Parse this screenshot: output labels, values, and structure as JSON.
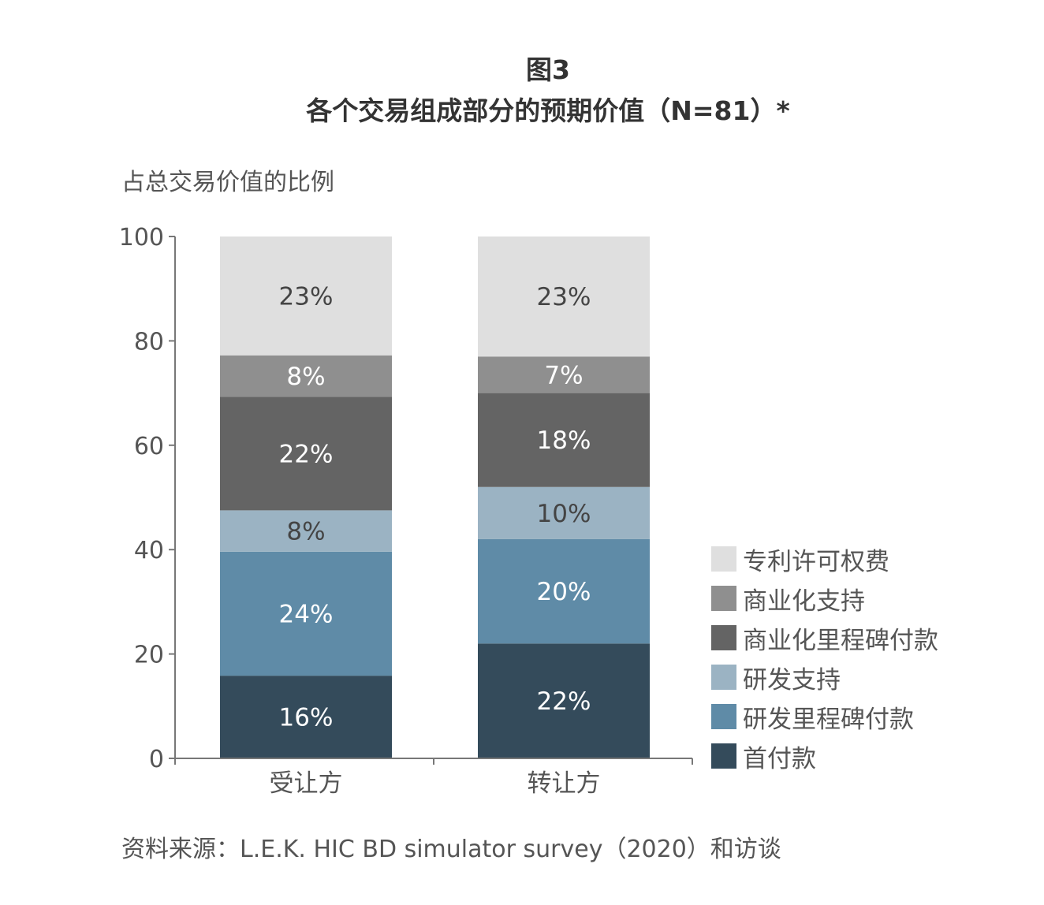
{
  "figure": {
    "label": "图3",
    "title": "各个交易组成部分的预期价值（N=81）*",
    "source": "资料来源：L.E.K. HIC BD simulator survey（2020）和访谈"
  },
  "chart_data": {
    "type": "bar",
    "stacked": true,
    "ylabel": "占总交易价值的比例",
    "xlabel": "",
    "ylim": [
      0,
      100
    ],
    "yticks": [
      "0",
      "20",
      "40",
      "60",
      "80",
      "100"
    ],
    "categories": [
      "受让方",
      "转让方"
    ],
    "series": [
      {
        "name": "首付款",
        "color": "#344b5b",
        "values": [
          16,
          22
        ],
        "labels": [
          "16%",
          "22%"
        ]
      },
      {
        "name": "研发里程碑付款",
        "color": "#5f8ba7",
        "values": [
          24,
          20
        ],
        "labels": [
          "24%",
          "20%"
        ]
      },
      {
        "name": "研发支持",
        "color": "#9bb3c3",
        "values": [
          8,
          10
        ],
        "labels": [
          "8%",
          "10%"
        ]
      },
      {
        "name": "商业化里程碑付款",
        "color": "#646464",
        "values": [
          22,
          18
        ],
        "labels": [
          "22%",
          "18%"
        ]
      },
      {
        "name": "商业化支持",
        "color": "#8f8f8f",
        "values": [
          8,
          7
        ],
        "labels": [
          "8%",
          "7%"
        ]
      },
      {
        "name": "专利许可权费",
        "color": "#dfdfdf",
        "values": [
          23,
          23
        ],
        "labels": [
          "23%",
          "23%"
        ]
      }
    ],
    "legend_position": "right",
    "legend_order": [
      5,
      4,
      3,
      2,
      1,
      0
    ],
    "grid": false
  }
}
